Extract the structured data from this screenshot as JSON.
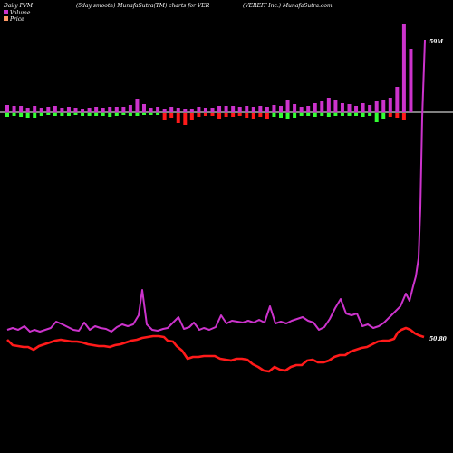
{
  "chart_data": {
    "type": "line",
    "header": {
      "left": "Daily PVM",
      "center_left": "(5day smooth) MunafaSutra(TM) charts for VER",
      "center_right": "(VEREIT Inc.) MunafaSutra.com"
    },
    "legend": [
      {
        "name": "Volume",
        "color": "#cc33cc"
      },
      {
        "name": "Price",
        "color": "#ff9966"
      }
    ],
    "volume_label": "59M",
    "price_label": "50.80",
    "colors": {
      "background": "#000000",
      "volume_line": "#cc33cc",
      "price_line": "#ff1a1a",
      "bar_up": "#cc33cc",
      "bar_down_green": "#33ff33",
      "bar_down_red": "#ff1a1a",
      "baseline": "#ffffff"
    },
    "bars": [
      {
        "u": 8,
        "d": 4,
        "c": "g"
      },
      {
        "u": 7,
        "d": 3,
        "c": "g"
      },
      {
        "u": 7,
        "d": 4,
        "c": "g"
      },
      {
        "u": 5,
        "d": 5,
        "c": "g"
      },
      {
        "u": 7,
        "d": 5,
        "c": "g"
      },
      {
        "u": 5,
        "d": 3,
        "c": "g"
      },
      {
        "u": 6,
        "d": 2,
        "c": "g"
      },
      {
        "u": 7,
        "d": 3,
        "c": "g"
      },
      {
        "u": 5,
        "d": 3,
        "c": "g"
      },
      {
        "u": 6,
        "d": 3,
        "c": "g"
      },
      {
        "u": 5,
        "d": 2,
        "c": "g"
      },
      {
        "u": 4,
        "d": 3,
        "c": "g"
      },
      {
        "u": 5,
        "d": 3,
        "c": "g"
      },
      {
        "u": 6,
        "d": 3,
        "c": "g"
      },
      {
        "u": 5,
        "d": 3,
        "c": "g"
      },
      {
        "u": 6,
        "d": 4,
        "c": "g"
      },
      {
        "u": 6,
        "d": 3,
        "c": "g"
      },
      {
        "u": 6,
        "d": 2,
        "c": "g"
      },
      {
        "u": 8,
        "d": 3,
        "c": "g"
      },
      {
        "u": 15,
        "d": 3,
        "c": "g"
      },
      {
        "u": 9,
        "d": 2,
        "c": "g"
      },
      {
        "u": 5,
        "d": 2,
        "c": "g"
      },
      {
        "u": 6,
        "d": 2,
        "c": "g"
      },
      {
        "u": 4,
        "d": 7,
        "c": "r"
      },
      {
        "u": 6,
        "d": 5,
        "c": "r"
      },
      {
        "u": 5,
        "d": 11,
        "c": "r"
      },
      {
        "u": 4,
        "d": 13,
        "c": "r"
      },
      {
        "u": 4,
        "d": 7,
        "c": "r"
      },
      {
        "u": 6,
        "d": 4,
        "c": "r"
      },
      {
        "u": 5,
        "d": 3,
        "c": "r"
      },
      {
        "u": 5,
        "d": 3,
        "c": "r"
      },
      {
        "u": 7,
        "d": 6,
        "c": "r"
      },
      {
        "u": 7,
        "d": 4,
        "c": "r"
      },
      {
        "u": 7,
        "d": 4,
        "c": "r"
      },
      {
        "u": 6,
        "d": 3,
        "c": "r"
      },
      {
        "u": 7,
        "d": 5,
        "c": "r"
      },
      {
        "u": 6,
        "d": 6,
        "c": "r"
      },
      {
        "u": 7,
        "d": 4,
        "c": "r"
      },
      {
        "u": 6,
        "d": 6,
        "c": "r"
      },
      {
        "u": 8,
        "d": 4,
        "c": "g"
      },
      {
        "u": 7,
        "d": 5,
        "c": "g"
      },
      {
        "u": 14,
        "d": 6,
        "c": "g"
      },
      {
        "u": 9,
        "d": 5,
        "c": "g"
      },
      {
        "u": 6,
        "d": 3,
        "c": "g"
      },
      {
        "u": 7,
        "d": 3,
        "c": "g"
      },
      {
        "u": 10,
        "d": 4,
        "c": "g"
      },
      {
        "u": 12,
        "d": 3,
        "c": "g"
      },
      {
        "u": 16,
        "d": 4,
        "c": "g"
      },
      {
        "u": 14,
        "d": 3,
        "c": "g"
      },
      {
        "u": 10,
        "d": 3,
        "c": "g"
      },
      {
        "u": 9,
        "d": 3,
        "c": "g"
      },
      {
        "u": 7,
        "d": 3,
        "c": "g"
      },
      {
        "u": 10,
        "d": 4,
        "c": "g"
      },
      {
        "u": 8,
        "d": 3,
        "c": "g"
      },
      {
        "u": 12,
        "d": 10,
        "c": "g"
      },
      {
        "u": 14,
        "d": 6,
        "c": "g"
      },
      {
        "u": 16,
        "d": 4,
        "c": "r"
      },
      {
        "u": 28,
        "d": 5,
        "c": "r"
      },
      {
        "u": 97,
        "d": 8,
        "c": "r"
      },
      {
        "u": 70,
        "d": 0,
        "c": "r"
      }
    ],
    "volume_line": [
      [
        8,
        364
      ],
      [
        14,
        362
      ],
      [
        20,
        364
      ],
      [
        27,
        360
      ],
      [
        33,
        366
      ],
      [
        38,
        364
      ],
      [
        44,
        366
      ],
      [
        50,
        364
      ],
      [
        56,
        362
      ],
      [
        62,
        355
      ],
      [
        69,
        358
      ],
      [
        75,
        361
      ],
      [
        81,
        364
      ],
      [
        87,
        365
      ],
      [
        93,
        356
      ],
      [
        99,
        364
      ],
      [
        105,
        360
      ],
      [
        111,
        362
      ],
      [
        117,
        363
      ],
      [
        123,
        366
      ],
      [
        129,
        361
      ],
      [
        135,
        358
      ],
      [
        141,
        360
      ],
      [
        147,
        358
      ],
      [
        153,
        348
      ],
      [
        157,
        320
      ],
      [
        162,
        358
      ],
      [
        168,
        364
      ],
      [
        174,
        365
      ],
      [
        180,
        363
      ],
      [
        185,
        362
      ],
      [
        191,
        356
      ],
      [
        197,
        350
      ],
      [
        203,
        363
      ],
      [
        209,
        361
      ],
      [
        214,
        356
      ],
      [
        220,
        364
      ],
      [
        225,
        362
      ],
      [
        231,
        364
      ],
      [
        238,
        361
      ],
      [
        244,
        348
      ],
      [
        250,
        357
      ],
      [
        256,
        354
      ],
      [
        262,
        355
      ],
      [
        268,
        356
      ],
      [
        274,
        354
      ],
      [
        280,
        356
      ],
      [
        286,
        353
      ],
      [
        292,
        356
      ],
      [
        298,
        338
      ],
      [
        304,
        357
      ],
      [
        310,
        355
      ],
      [
        316,
        357
      ],
      [
        322,
        354
      ],
      [
        328,
        352
      ],
      [
        334,
        350
      ],
      [
        340,
        354
      ],
      [
        346,
        356
      ],
      [
        352,
        364
      ],
      [
        358,
        361
      ],
      [
        364,
        352
      ],
      [
        370,
        340
      ],
      [
        376,
        330
      ],
      [
        382,
        346
      ],
      [
        388,
        348
      ],
      [
        394,
        346
      ],
      [
        400,
        360
      ],
      [
        406,
        358
      ],
      [
        412,
        362
      ],
      [
        418,
        360
      ],
      [
        424,
        356
      ],
      [
        430,
        350
      ],
      [
        436,
        344
      ],
      [
        442,
        338
      ],
      [
        448,
        324
      ],
      [
        452,
        332
      ],
      [
        456,
        316
      ],
      [
        459,
        305
      ],
      [
        462,
        285
      ],
      [
        464,
        230
      ],
      [
        466,
        130
      ],
      [
        469,
        44
      ]
    ],
    "price_line": [
      [
        8,
        375
      ],
      [
        14,
        381
      ],
      [
        20,
        382
      ],
      [
        26,
        383
      ],
      [
        31,
        383
      ],
      [
        37,
        386
      ],
      [
        43,
        382
      ],
      [
        49,
        380
      ],
      [
        55,
        378
      ],
      [
        61,
        376
      ],
      [
        67,
        375
      ],
      [
        73,
        376
      ],
      [
        79,
        377
      ],
      [
        85,
        377
      ],
      [
        91,
        378
      ],
      [
        97,
        380
      ],
      [
        103,
        381
      ],
      [
        109,
        382
      ],
      [
        115,
        382
      ],
      [
        121,
        383
      ],
      [
        127,
        381
      ],
      [
        133,
        380
      ],
      [
        139,
        378
      ],
      [
        145,
        376
      ],
      [
        151,
        375
      ],
      [
        157,
        373
      ],
      [
        163,
        372
      ],
      [
        169,
        371
      ],
      [
        175,
        371
      ],
      [
        181,
        372
      ],
      [
        185,
        376
      ],
      [
        191,
        377
      ],
      [
        195,
        382
      ],
      [
        201,
        387
      ],
      [
        207,
        396
      ],
      [
        213,
        394
      ],
      [
        219,
        394
      ],
      [
        225,
        393
      ],
      [
        231,
        393
      ],
      [
        237,
        393
      ],
      [
        243,
        396
      ],
      [
        249,
        397
      ],
      [
        255,
        398
      ],
      [
        261,
        396
      ],
      [
        267,
        396
      ],
      [
        273,
        397
      ],
      [
        279,
        402
      ],
      [
        285,
        405
      ],
      [
        291,
        409
      ],
      [
        297,
        410
      ],
      [
        303,
        405
      ],
      [
        309,
        408
      ],
      [
        315,
        409
      ],
      [
        321,
        405
      ],
      [
        327,
        403
      ],
      [
        333,
        403
      ],
      [
        339,
        398
      ],
      [
        345,
        397
      ],
      [
        351,
        400
      ],
      [
        357,
        400
      ],
      [
        363,
        398
      ],
      [
        369,
        394
      ],
      [
        375,
        392
      ],
      [
        381,
        392
      ],
      [
        387,
        388
      ],
      [
        393,
        386
      ],
      [
        399,
        384
      ],
      [
        405,
        383
      ],
      [
        411,
        380
      ],
      [
        417,
        377
      ],
      [
        423,
        376
      ],
      [
        429,
        376
      ],
      [
        435,
        374
      ],
      [
        439,
        367
      ],
      [
        443,
        364
      ],
      [
        448,
        362
      ],
      [
        453,
        364
      ],
      [
        458,
        368
      ],
      [
        462,
        370
      ],
      [
        468,
        372
      ]
    ]
  }
}
